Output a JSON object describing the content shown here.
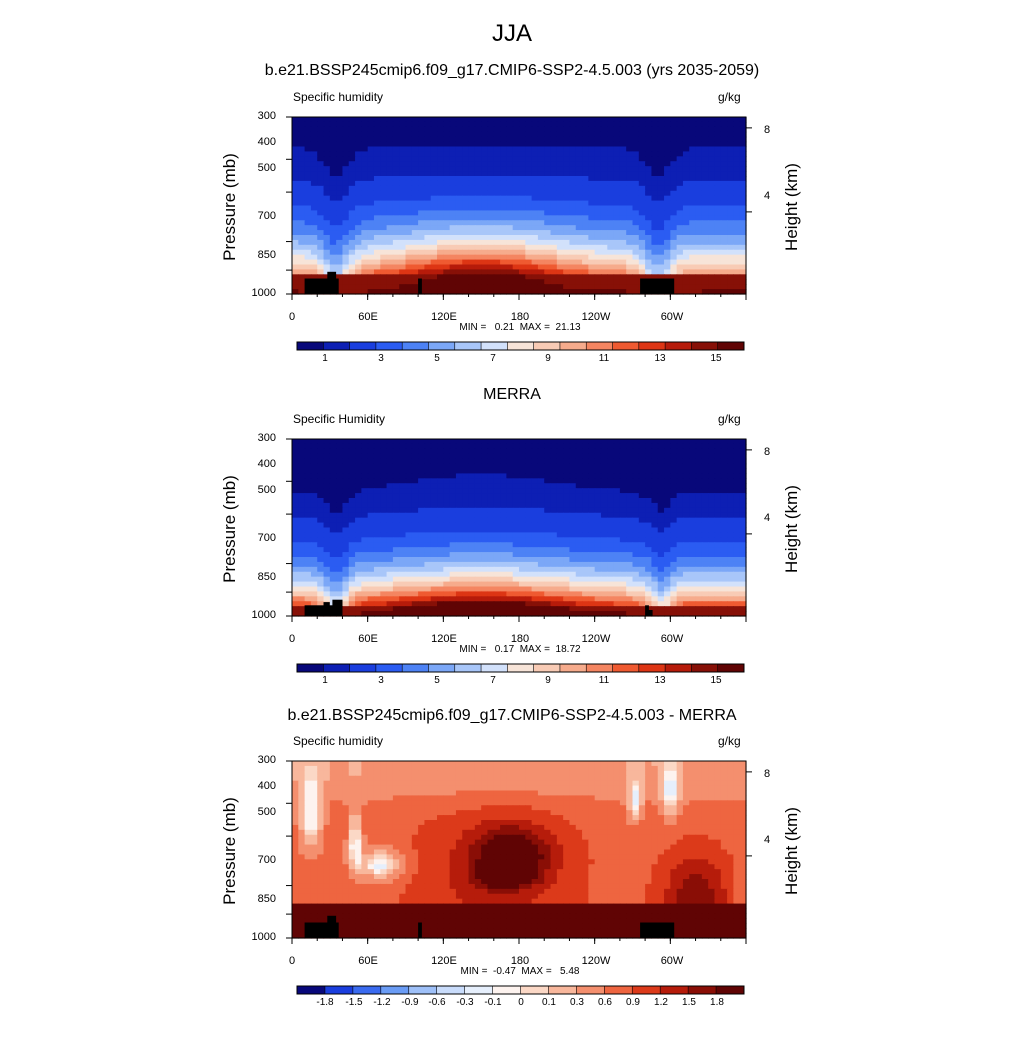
{
  "figure": {
    "title": "JJA"
  },
  "chart_data": [
    {
      "type": "heatmap",
      "title": "b.e21.BSSP245cmip6.f09_g17.CMIP6-SSP2-4.5.003 (yrs 2035-2059)",
      "left_label": "Specific humidity",
      "units": "g/kg",
      "ylabel": "Pressure (mb)",
      "y2label": "Height (km)",
      "y_ticks": [
        "300",
        "400",
        "500",
        "700",
        "850",
        "1000"
      ],
      "y2_ticks": [
        "8",
        "4"
      ],
      "x_ticks": [
        "0",
        "60E",
        "120E",
        "180",
        "120W",
        "60W"
      ],
      "min_max": "MIN =   0.21  MAX =  21.13",
      "colorbar_labels": [
        "1",
        "3",
        "5",
        "7",
        "9",
        "11",
        "13",
        "15"
      ],
      "levels": [
        0.5,
        1,
        2,
        3,
        4,
        5,
        6,
        7,
        8,
        9,
        10,
        11,
        12,
        13,
        14,
        15
      ],
      "colormap": "humidity",
      "field": "model"
    },
    {
      "type": "heatmap",
      "title": "MERRA",
      "left_label": "Specific Humidity",
      "units": "g/kg",
      "ylabel": "Pressure (mb)",
      "y2label": "Height (km)",
      "y_ticks": [
        "300",
        "400",
        "500",
        "700",
        "850",
        "1000"
      ],
      "y2_ticks": [
        "8",
        "4"
      ],
      "x_ticks": [
        "0",
        "60E",
        "120E",
        "180",
        "120W",
        "60W"
      ],
      "min_max": "MIN =   0.17  MAX =  18.72",
      "colorbar_labels": [
        "1",
        "3",
        "5",
        "7",
        "9",
        "11",
        "13",
        "15"
      ],
      "levels": [
        0.5,
        1,
        2,
        3,
        4,
        5,
        6,
        7,
        8,
        9,
        10,
        11,
        12,
        13,
        14,
        15
      ],
      "colormap": "humidity",
      "field": "obs"
    },
    {
      "type": "heatmap",
      "title": "b.e21.BSSP245cmip6.f09_g17.CMIP6-SSP2-4.5.003 - MERRA",
      "left_label": "Specific humidity",
      "units": "g/kg",
      "ylabel": "Pressure (mb)",
      "y2label": "Height (km)",
      "y_ticks": [
        "300",
        "400",
        "500",
        "700",
        "850",
        "1000"
      ],
      "y2_ticks": [
        "8",
        "4"
      ],
      "x_ticks": [
        "0",
        "60E",
        "120E",
        "180",
        "120W",
        "60W"
      ],
      "min_max": "MIN =  -0.47  MAX =   5.48",
      "colorbar_labels": [
        "-1.8",
        "-1.5",
        "-1.2",
        "-0.9",
        "-0.6",
        "-0.3",
        "-0.1",
        "0",
        "0.1",
        "0.3",
        "0.6",
        "0.9",
        "1.2",
        "1.5",
        "1.8"
      ],
      "levels": [
        -1.8,
        -1.5,
        -1.2,
        -0.9,
        -0.6,
        -0.3,
        -0.1,
        0,
        0.1,
        0.3,
        0.6,
        0.9,
        1.2,
        1.5,
        1.8
      ],
      "colormap": "diverging",
      "field": "diff"
    }
  ],
  "axes": {
    "pressure_range_mb": [
      300,
      1000
    ],
    "longitude_range_deg": [
      0,
      360
    ],
    "height_ticks_km": [
      8,
      4
    ]
  },
  "colors": {
    "humidity": [
      "#08087a",
      "#0d1fb4",
      "#1a3ede",
      "#2b5cf2",
      "#4d82f5",
      "#7ba7f7",
      "#a8c6f9",
      "#d2e1fb",
      "#f7e4d8",
      "#f8cbb5",
      "#f6ab8c",
      "#f48561",
      "#ef5a31",
      "#dd3514",
      "#b61b0a",
      "#871007",
      "#600404"
    ],
    "diverging": [
      "#08087a",
      "#1a3ede",
      "#3a6bf0",
      "#6a9cf5",
      "#9ec0f8",
      "#c9dcfb",
      "#e6effc",
      "#fdf3ef",
      "#fbd8c6",
      "#f8b79c",
      "#f48f6e",
      "#ee6540",
      "#dc3a1a",
      "#b61c0b",
      "#8a0e06",
      "#600404"
    ],
    "topography": "#000000"
  }
}
